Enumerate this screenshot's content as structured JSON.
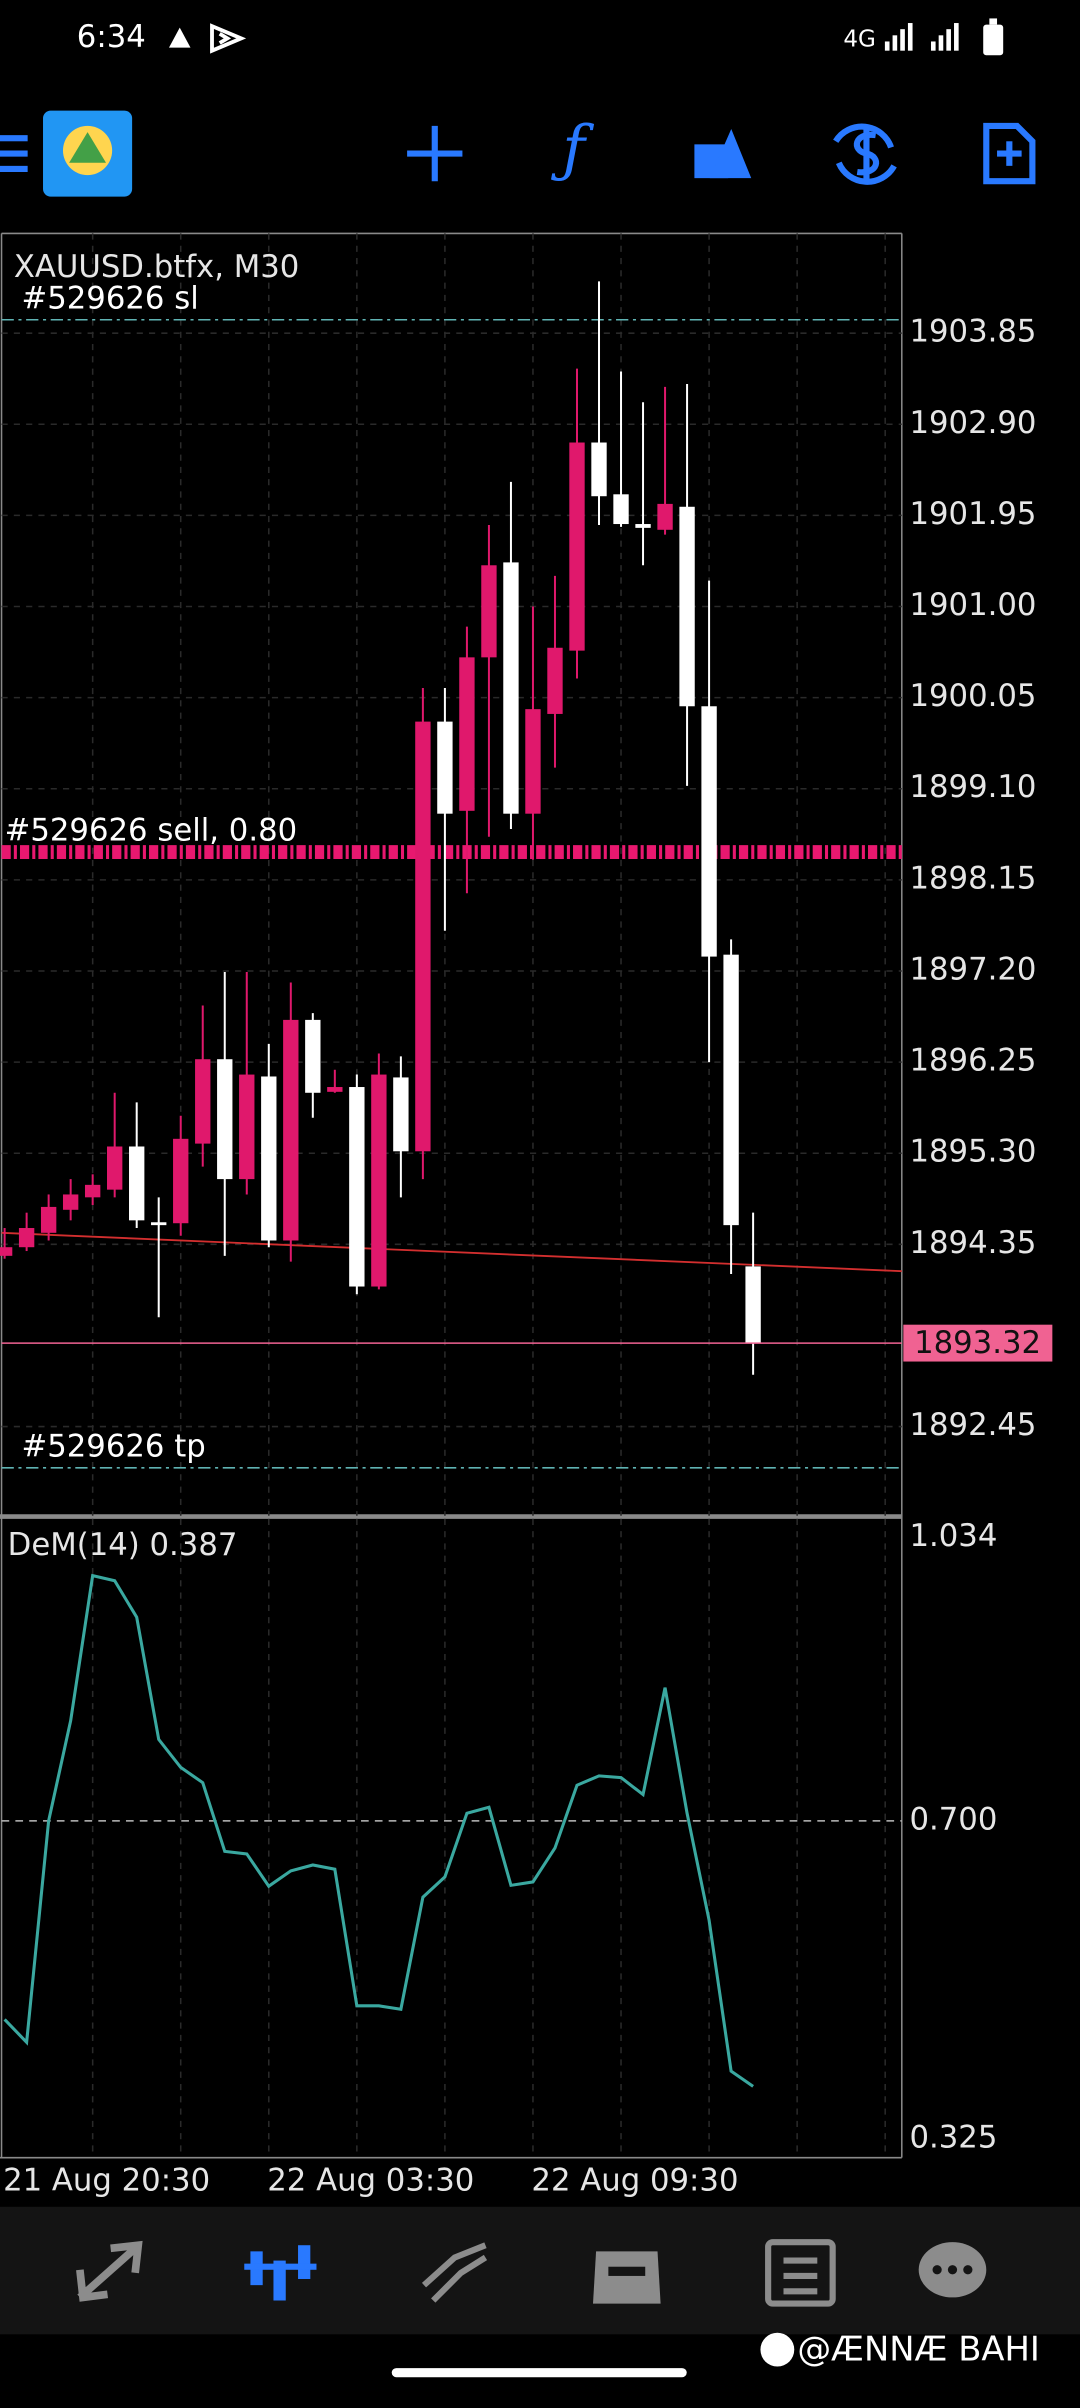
{
  "status_bar": {
    "time": "6:34",
    "network": "4G"
  },
  "watermark": "@ÆNNÆ BAHI",
  "chart_data": [
    {
      "type": "candlestick",
      "title": "XAUUSD.btfx, M30",
      "categories": [
        "21 Aug 20:30",
        null,
        null,
        null,
        null,
        null,
        null,
        null,
        null,
        null,
        null,
        null,
        "22 Aug 03:30",
        null,
        null,
        null,
        null,
        null,
        null,
        null,
        null,
        null,
        null,
        null,
        "22 Aug 09:30",
        null,
        null,
        null,
        null,
        null,
        null,
        null,
        null,
        null,
        null
      ],
      "open": [
        1894.23,
        1894.32,
        1894.47,
        1894.71,
        1894.84,
        1894.92,
        1895.37,
        1894.58,
        1894.57,
        1895.4,
        1896.28,
        1895.03,
        1896.1,
        1894.39,
        1896.69,
        1895.94,
        1895.99,
        1893.91,
        1896.09,
        1895.32,
        1899.8,
        1898.87,
        1900.47,
        1901.46,
        1898.84,
        1899.88,
        1900.54,
        1902.71,
        1902.17,
        1901.86,
        1901.8,
        1902.04,
        1899.96,
        1897.37,
        1894.12
      ],
      "high": [
        1894.52,
        1894.68,
        1894.87,
        1895.03,
        1895.08,
        1895.93,
        1895.83,
        1894.84,
        1895.69,
        1896.84,
        1897.19,
        1897.19,
        1896.44,
        1897.08,
        1896.76,
        1896.17,
        1896.12,
        1896.34,
        1896.31,
        1900.15,
        1900.15,
        1900.79,
        1901.85,
        1902.3,
        1901.0,
        1901.32,
        1903.48,
        1904.39,
        1903.45,
        1903.13,
        1903.29,
        1903.32,
        1901.27,
        1897.53,
        1894.68
      ],
      "low": [
        1894.2,
        1894.28,
        1894.39,
        1894.6,
        1894.76,
        1894.84,
        1894.52,
        1893.59,
        1894.44,
        1895.16,
        1894.23,
        1894.87,
        1894.32,
        1894.17,
        1895.67,
        1895.93,
        1893.83,
        1893.88,
        1894.84,
        1895.03,
        1897.62,
        1898.01,
        1898.6,
        1898.68,
        1898.36,
        1899.32,
        1900.25,
        1901.85,
        1901.83,
        1901.43,
        1901.75,
        1899.13,
        1896.25,
        1894.04,
        1892.99
      ],
      "close": [
        1894.32,
        1894.52,
        1894.74,
        1894.87,
        1894.97,
        1895.37,
        1894.6,
        1894.55,
        1895.45,
        1896.28,
        1895.03,
        1896.12,
        1894.39,
        1896.69,
        1895.93,
        1895.99,
        1893.91,
        1896.12,
        1895.32,
        1899.8,
        1898.84,
        1900.47,
        1901.43,
        1898.84,
        1899.93,
        1900.57,
        1902.71,
        1902.15,
        1901.86,
        1901.82,
        1902.07,
        1899.96,
        1897.35,
        1894.55,
        1893.32
      ],
      "up_color": "#e0186c",
      "down_color": "#ffffff",
      "ylim": [
        1891.52,
        1904.89
      ],
      "yticks": [
        1903.85,
        {
          "value": 1902.9,
          "label": "1902.90"
        },
        1901.95,
        {
          "value": 1901,
          "label": "1901.00"
        },
        1900.05,
        {
          "value": 1899.1,
          "label": "1899.10"
        },
        1898.15,
        {
          "value": 1897.2,
          "label": "1897.20"
        },
        1896.25,
        {
          "value": 1895.3,
          "label": "1895.30"
        },
        1894.35,
        1892.45
      ],
      "grid": true,
      "levels": [
        {
          "label": "#529626 sl",
          "value": 1903.99,
          "color": "#5fb3b3"
        },
        {
          "label": "#529626 sell, 0.80",
          "value": 1898.44,
          "color": "#e8186f"
        },
        {
          "label": "#529626 tp",
          "value": 1892.02,
          "color": "#5fb3b3"
        }
      ],
      "current_price": {
        "value": 1893.32,
        "color": "#f06292"
      },
      "trendline": {
        "color": "#d32f2f",
        "values": [
          1894.47,
          1894.07
        ]
      }
    },
    {
      "type": "line",
      "title": "DeM(14) 0.387",
      "series": [
        {
          "color": "#3aa8a0",
          "values": [
            0.466,
            0.439,
            0.7,
            0.818,
            0.989,
            0.983,
            0.94,
            0.796,
            0.763,
            0.745,
            0.664,
            0.661,
            0.623,
            0.641,
            0.648,
            0.643,
            0.482,
            0.482,
            0.478,
            0.61,
            0.634,
            0.709,
            0.716,
            0.624,
            0.628,
            0.668,
            0.742,
            0.753,
            0.751,
            0.731,
            0.857,
            0.709,
            0.583,
            0.405,
            0.387
          ]
        }
      ],
      "ylim": [
        0.303,
        1.056
      ],
      "yticks": [
        1.034,
        {
          "value": 0.7,
          "label": "0.700"
        },
        0.325
      ],
      "grid": false,
      "levels": [
        0.7
      ]
    }
  ]
}
